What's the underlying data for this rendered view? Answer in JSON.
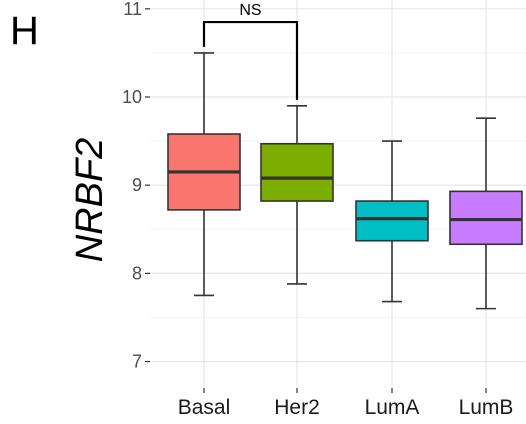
{
  "panel_label": "H",
  "chart_data": {
    "type": "box",
    "title": "",
    "xlabel": "",
    "ylabel": "NRBF2",
    "ylim": [
      6.7,
      11.1
    ],
    "yticks": [
      7,
      8,
      9,
      10,
      11
    ],
    "grid": true,
    "categories": [
      "Basal",
      "Her2",
      "LumA",
      "LumB"
    ],
    "boxes": [
      {
        "category": "Basal",
        "color": "#F8766D",
        "min": 7.75,
        "q1": 8.72,
        "median": 9.15,
        "q3": 9.58,
        "max": 10.5
      },
      {
        "category": "Her2",
        "color": "#7CAE00",
        "min": 7.88,
        "q1": 8.82,
        "median": 9.08,
        "q3": 9.47,
        "max": 9.9
      },
      {
        "category": "LumA",
        "color": "#00BFC4",
        "min": 7.68,
        "q1": 8.37,
        "median": 8.62,
        "q3": 8.82,
        "max": 9.5
      },
      {
        "category": "LumB",
        "color": "#C77CFF",
        "min": 7.6,
        "q1": 8.33,
        "median": 8.61,
        "q3": 8.93,
        "max": 9.76
      }
    ],
    "annotations": [
      {
        "type": "significance",
        "from": "Basal",
        "to": "Her2",
        "label": "NS"
      }
    ]
  }
}
